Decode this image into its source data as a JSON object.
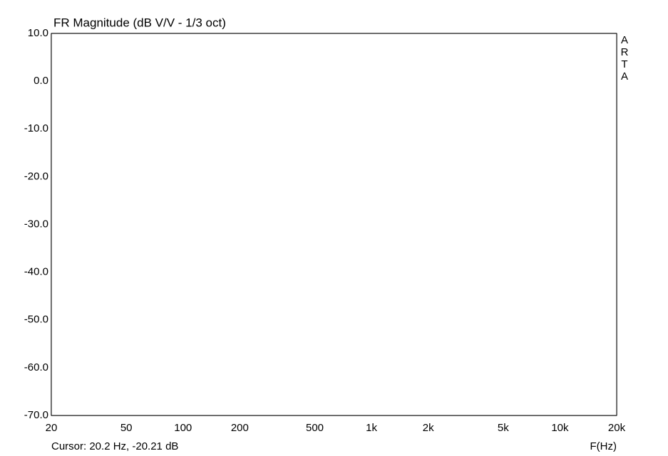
{
  "chart_data": {
    "type": "line",
    "title": "FR Magnitude (dB V/V - 1/3 oct)",
    "annotations": {
      "side": "ARTA",
      "cursor": "Cursor: 20.2 Hz, -20.21 dB"
    },
    "x_label": "F(Hz)",
    "log_x": true,
    "grid": true,
    "xlim": [
      20,
      20000
    ],
    "ylim": [
      -70,
      10
    ],
    "xticks": [
      20,
      50,
      100,
      200,
      500,
      {
        "value": 1000,
        "label": "1k"
      },
      {
        "value": 2000,
        "label": "2k"
      },
      {
        "value": 5000,
        "label": "5k"
      },
      {
        "value": 10000,
        "label": "10k"
      },
      {
        "value": 20000,
        "label": "20k"
      }
    ],
    "xminorticks": [
      30,
      40,
      60,
      70,
      80,
      90,
      300,
      400,
      600,
      700,
      800,
      900,
      3000,
      4000,
      6000,
      7000,
      8000,
      9000
    ],
    "yticks": [
      {
        "value": 10,
        "label": "10.0"
      },
      {
        "value": 0,
        "label": "0.0"
      },
      {
        "value": -10,
        "label": "-10.0"
      },
      {
        "value": -20,
        "label": "-20.0"
      },
      {
        "value": -30,
        "label": "-30.0"
      },
      {
        "value": -40,
        "label": "-40.0"
      },
      {
        "value": -50,
        "label": "-50.0"
      },
      {
        "value": -60,
        "label": "-60.0"
      },
      {
        "value": -70,
        "label": "-70.0"
      }
    ],
    "series": [
      {
        "color": "#000000",
        "x": [
          20,
          23,
          26,
          30,
          33,
          36,
          40,
          45,
          50,
          55,
          60,
          65,
          70,
          75,
          80,
          90,
          100,
          110,
          120,
          130,
          140,
          150,
          165,
          180,
          200,
          220,
          240,
          260,
          280,
          300,
          330,
          360,
          400,
          420,
          460,
          500,
          550,
          600,
          650,
          700,
          800,
          900,
          1000,
          1100,
          1200,
          1300,
          1500,
          1700,
          2000,
          2200,
          2500,
          2800,
          3000,
          3500,
          4000,
          5000,
          5500,
          6000,
          7000,
          8000,
          8500,
          9000,
          9500,
          10000,
          11000,
          12000,
          13000,
          14000,
          15000,
          17000,
          18500,
          20000
        ],
        "values": [
          -20.3,
          -18.3,
          -17.3,
          -16.8,
          -16.1,
          -14.3,
          -12.1,
          -9.4,
          -6.5,
          -3.9,
          -2.2,
          -2.4,
          -3.1,
          -3.9,
          -3.9,
          -2.1,
          -1.2,
          -1.6,
          -3.9,
          -6.8,
          -8.6,
          -8.6,
          -6.1,
          -3.9,
          -3.9,
          -6.5,
          -7.1,
          -6.1,
          -6.1,
          -3.9,
          -3.0,
          -1.6,
          -1.2,
          0.9,
          1.4,
          1.4,
          0.6,
          -0.9,
          -2.8,
          -3.9,
          -3.6,
          -2.4,
          -2.1,
          -2.4,
          -3.9,
          -3.1,
          -2.1,
          -3.1,
          -4.9,
          -6.2,
          -4.3,
          -3.6,
          -4.3,
          -4.6,
          -6.1,
          -6.5,
          -8.0,
          -10.6,
          -13.5,
          -15.5,
          -19.5,
          -22.9,
          -21.0,
          -19.8,
          -20.3,
          -23.5,
          -26.5,
          -27.4,
          -29.6,
          -31.0,
          -35.2,
          -35.9
        ]
      }
    ]
  }
}
